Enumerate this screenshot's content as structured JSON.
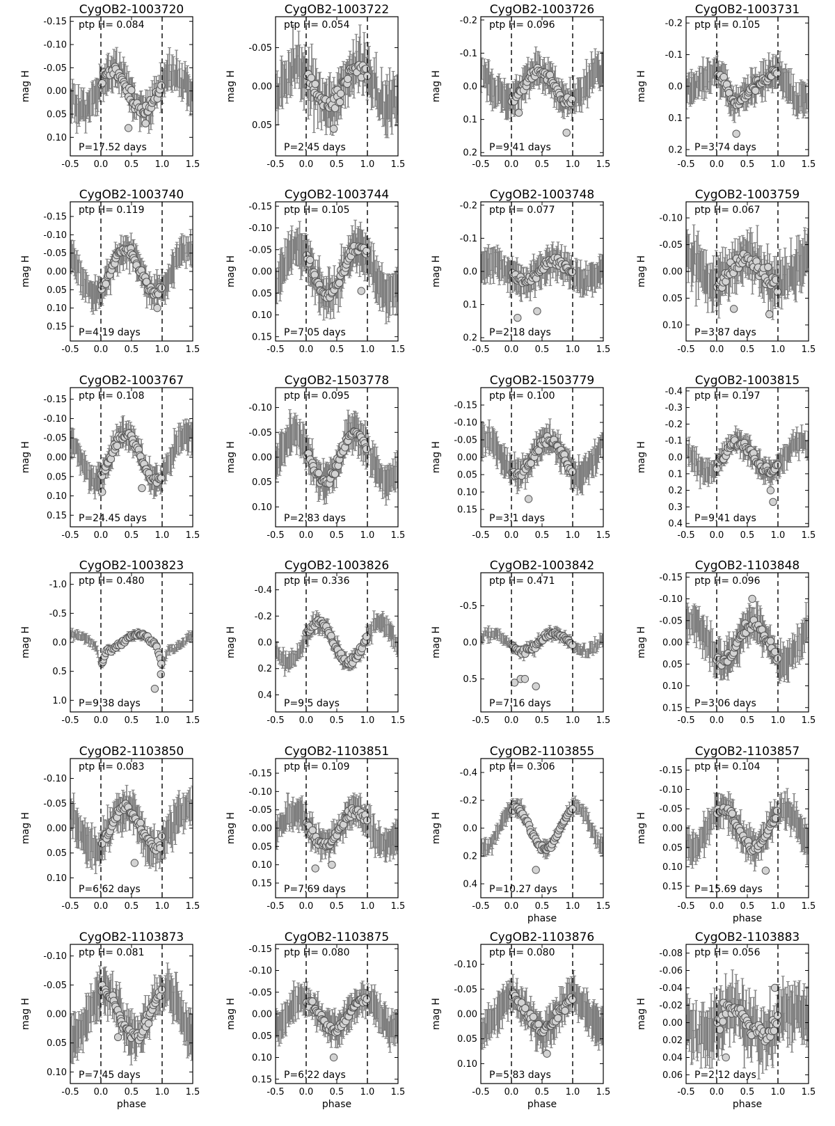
{
  "figure": {
    "xlabel": "phase",
    "ylabel": "mag H",
    "ptp_prefix": "ptp H=",
    "period_prefix": "P=",
    "period_suffix": " days",
    "xticks": [
      "-0.5",
      "0.0",
      "0.5",
      "1.0",
      "1.5"
    ],
    "colors": {
      "errorbar": "#7f7f7f",
      "marker_fill": "#d3d3d3",
      "marker_edge": "#555555",
      "axes": "#000000"
    }
  },
  "chart_data": [
    {
      "type": "scatter",
      "title": "CygOB2-1003720",
      "ptp": "0.084",
      "period": "17.52",
      "ylim": [
        0.14,
        -0.16
      ],
      "yticks": [
        "-0.15",
        "-0.10",
        "-0.05",
        "0.00",
        "0.05",
        "0.10"
      ],
      "ytick_values": [
        -0.15,
        -0.1,
        -0.05,
        0.0,
        0.05,
        0.1
      ],
      "mean": 0.0,
      "amp": 0.042,
      "shape": "sin",
      "phi0": 0.2,
      "scatter": 0.018,
      "err": 0.03,
      "outliers": [
        [
          0.45,
          0.08
        ],
        [
          0.73,
          0.07
        ]
      ]
    },
    {
      "type": "scatter",
      "title": "CygOB2-1003722",
      "ptp": "0.054",
      "period": "2.45",
      "ylim": [
        0.09,
        -0.09
      ],
      "yticks": [
        "-0.05",
        "0.00",
        "0.05"
      ],
      "ytick_values": [
        -0.05,
        0.0,
        0.05
      ],
      "mean": 0.0,
      "amp": 0.025,
      "shape": "sin",
      "phi0": 0.85,
      "scatter": 0.016,
      "err": 0.025,
      "outliers": [
        [
          0.45,
          0.055
        ]
      ]
    },
    {
      "type": "scatter",
      "title": "CygOB2-1003726",
      "ptp": "0.096",
      "period": "9.41",
      "ylim": [
        0.21,
        -0.21
      ],
      "yticks": [
        "-0.2",
        "-0.1",
        "0.0",
        "0.1",
        "0.2"
      ],
      "ytick_values": [
        -0.2,
        -0.1,
        0.0,
        0.1,
        0.2
      ],
      "mean": 0.0,
      "amp": 0.045,
      "shape": "sin",
      "phi0": 0.45,
      "scatter": 0.02,
      "err": 0.04,
      "outliers": [
        [
          0.12,
          0.08
        ],
        [
          0.9,
          0.14
        ]
      ]
    },
    {
      "type": "scatter",
      "title": "CygOB2-1003731",
      "ptp": "0.105",
      "period": "3.74",
      "ylim": [
        0.22,
        -0.22
      ],
      "yticks": [
        "-0.2",
        "-0.1",
        "0.0",
        "0.1",
        "0.2"
      ],
      "ytick_values": [
        -0.2,
        -0.1,
        0.0,
        0.1,
        0.2
      ],
      "mean": 0.0,
      "amp": 0.055,
      "shape": "saw",
      "phi0": 0.0,
      "phimin": 0.3,
      "scatter": 0.02,
      "err": 0.04,
      "outliers": [
        [
          0.32,
          0.15
        ]
      ]
    },
    {
      "type": "scatter",
      "title": "CygOB2-1003740",
      "ptp": "0.119",
      "period": "4.19",
      "ylim": [
        0.19,
        -0.19
      ],
      "yticks": [
        "-0.15",
        "-0.10",
        "-0.05",
        "0.00",
        "0.05",
        "0.10",
        "0.15"
      ],
      "ytick_values": [
        -0.15,
        -0.1,
        -0.05,
        0.0,
        0.05,
        0.1,
        0.15
      ],
      "mean": 0.0,
      "amp": 0.06,
      "shape": "sin",
      "phi0": 0.4,
      "scatter": 0.015,
      "err": 0.035,
      "outliers": [
        [
          0.92,
          0.1
        ]
      ]
    },
    {
      "type": "scatter",
      "title": "CygOB2-1003744",
      "ptp": "0.105",
      "period": "7.05",
      "ylim": [
        0.16,
        -0.16
      ],
      "yticks": [
        "-0.15",
        "-0.10",
        "-0.05",
        "0.00",
        "0.05",
        "0.10",
        "0.15"
      ],
      "ytick_values": [
        -0.15,
        -0.1,
        -0.05,
        0.0,
        0.05,
        0.1,
        0.15
      ],
      "mean": 0.0,
      "amp": 0.055,
      "shape": "sin",
      "phi0": 0.85,
      "scatter": 0.015,
      "err": 0.04,
      "outliers": [
        [
          0.9,
          0.045
        ]
      ]
    },
    {
      "type": "scatter",
      "title": "CygOB2-1003748",
      "ptp": "0.077",
      "period": "2.18",
      "ylim": [
        0.21,
        -0.21
      ],
      "yticks": [
        "-0.2",
        "-0.1",
        "0.0",
        "0.1",
        "0.2"
      ],
      "ytick_values": [
        -0.2,
        -0.1,
        0.0,
        0.1,
        0.2
      ],
      "mean": 0.0,
      "amp": 0.03,
      "shape": "sin",
      "phi0": 0.7,
      "scatter": 0.015,
      "err": 0.04,
      "outliers": [
        [
          0.1,
          0.14
        ],
        [
          0.42,
          0.12
        ]
      ]
    },
    {
      "type": "scatter",
      "title": "CygOB2-1003759",
      "ptp": "0.067",
      "period": "3.87",
      "ylim": [
        0.13,
        -0.13
      ],
      "yticks": [
        "-0.10",
        "-0.05",
        "0.00",
        "0.05",
        "0.10"
      ],
      "ytick_values": [
        -0.1,
        -0.05,
        0.0,
        0.05,
        0.1
      ],
      "mean": 0.0,
      "amp": 0.025,
      "shape": "sin",
      "phi0": 0.5,
      "scatter": 0.02,
      "err": 0.035,
      "outliers": [
        [
          0.28,
          0.07
        ],
        [
          0.86,
          0.08
        ]
      ]
    },
    {
      "type": "scatter",
      "title": "CygOB2-1003767",
      "ptp": "0.108",
      "period": "24.45",
      "ylim": [
        0.18,
        -0.18
      ],
      "yticks": [
        "-0.15",
        "-0.10",
        "-0.05",
        "0.00",
        "0.05",
        "0.10",
        "0.15"
      ],
      "ytick_values": [
        -0.15,
        -0.1,
        -0.05,
        0.0,
        0.05,
        0.1,
        0.15
      ],
      "mean": 0.0,
      "amp": 0.06,
      "shape": "sin",
      "phi0": 0.4,
      "scatter": 0.012,
      "err": 0.03,
      "outliers": [
        [
          0.02,
          0.09
        ],
        [
          0.67,
          0.08
        ]
      ]
    },
    {
      "type": "scatter",
      "title": "CygOB2-1503778",
      "ptp": "0.095",
      "period": "2.83",
      "ylim": [
        0.14,
        -0.14
      ],
      "yticks": [
        "-0.10",
        "-0.05",
        "0.00",
        "0.05",
        "0.10"
      ],
      "ytick_values": [
        -0.1,
        -0.05,
        0.0,
        0.05,
        0.1
      ],
      "mean": 0.0,
      "amp": 0.05,
      "shape": "sin",
      "phi0": 0.8,
      "scatter": 0.012,
      "err": 0.03,
      "outliers": []
    },
    {
      "type": "scatter",
      "title": "CygOB2-1503779",
      "ptp": "0.100",
      "period": "3.1",
      "ylim": [
        0.2,
        -0.2
      ],
      "yticks": [
        "-0.15",
        "-0.10",
        "-0.05",
        "0.00",
        "0.05",
        "0.10",
        "0.15"
      ],
      "ytick_values": [
        -0.15,
        -0.1,
        -0.05,
        0.0,
        0.05,
        0.1,
        0.15
      ],
      "mean": 0.0,
      "amp": 0.05,
      "shape": "sin",
      "phi0": 0.6,
      "scatter": 0.015,
      "err": 0.035,
      "outliers": [
        [
          0.28,
          0.12
        ]
      ]
    },
    {
      "type": "scatter",
      "title": "CygOB2-1003815",
      "ptp": "0.197",
      "period": "9.41",
      "ylim": [
        0.42,
        -0.42
      ],
      "yticks": [
        "-0.4",
        "-0.3",
        "-0.2",
        "-0.1",
        "0.0",
        "0.1",
        "0.2",
        "0.3",
        "0.4"
      ],
      "ytick_values": [
        -0.4,
        -0.3,
        -0.2,
        -0.1,
        0.0,
        0.1,
        0.2,
        0.3,
        0.4
      ],
      "mean": 0.0,
      "amp": 0.09,
      "shape": "sin",
      "phi0": 0.35,
      "scatter": 0.03,
      "err": 0.06,
      "outliers": [
        [
          0.92,
          0.27
        ],
        [
          0.88,
          0.2
        ]
      ]
    },
    {
      "type": "scatter",
      "title": "CygOB2-1003823",
      "ptp": "0.480",
      "period": "9.38",
      "ylim": [
        1.2,
        -1.2
      ],
      "yticks": [
        "-1.0",
        "-0.5",
        "0.0",
        "0.5",
        "1.0"
      ],
      "ytick_values": [
        -1.0,
        -0.5,
        0.0,
        0.5,
        1.0
      ],
      "mean": 0.0,
      "amp": 0.22,
      "shape": "dip",
      "phi0": 0.6,
      "scatter": 0.04,
      "err": 0.06,
      "outliers": [
        [
          0.88,
          0.8
        ],
        [
          0.98,
          0.55
        ]
      ]
    },
    {
      "type": "scatter",
      "title": "CygOB2-1003826",
      "ptp": "0.336",
      "period": "9.5",
      "ylim": [
        0.53,
        -0.53
      ],
      "yticks": [
        "-0.4",
        "-0.2",
        "0.0",
        "0.2",
        "0.4"
      ],
      "ytick_values": [
        -0.4,
        -0.2,
        0.0,
        0.2,
        0.4
      ],
      "mean": 0.0,
      "amp": 0.15,
      "shape": "sin",
      "phi0": 0.2,
      "scatter": 0.03,
      "err": 0.06,
      "outliers": []
    },
    {
      "type": "scatter",
      "title": "CygOB2-1003842",
      "ptp": "0.471",
      "period": "7.16",
      "ylim": [
        0.95,
        -0.95
      ],
      "yticks": [
        "-0.5",
        "0.0",
        "0.5"
      ],
      "ytick_values": [
        -0.5,
        0.0,
        0.5
      ],
      "mean": 0.0,
      "amp": 0.12,
      "shape": "sin",
      "phi0": 0.7,
      "scatter": 0.05,
      "err": 0.06,
      "outliers": [
        [
          0.05,
          0.55
        ],
        [
          0.15,
          0.5
        ],
        [
          0.22,
          0.5
        ],
        [
          0.4,
          0.6
        ]
      ]
    },
    {
      "type": "scatter",
      "title": "CygOB2-1103848",
      "ptp": "0.096",
      "period": "3.06",
      "ylim": [
        0.16,
        -0.16
      ],
      "yticks": [
        "-0.15",
        "-0.10",
        "-0.05",
        "0.00",
        "0.05",
        "0.10",
        "0.15"
      ],
      "ytick_values": [
        -0.15,
        -0.1,
        -0.05,
        0.0,
        0.05,
        0.1,
        0.15
      ],
      "mean": 0.0,
      "amp": 0.045,
      "shape": "sin",
      "phi0": 0.6,
      "scatter": 0.015,
      "err": 0.035,
      "outliers": [
        [
          0.58,
          -0.1
        ]
      ]
    },
    {
      "type": "scatter",
      "title": "CygOB2-1103850",
      "ptp": "0.083",
      "period": "6.62",
      "ylim": [
        0.14,
        -0.14
      ],
      "yticks": [
        "-0.10",
        "-0.05",
        "0.00",
        "0.05",
        "0.10"
      ],
      "ytick_values": [
        -0.1,
        -0.05,
        0.0,
        0.05,
        0.1
      ],
      "mean": 0.0,
      "amp": 0.04,
      "shape": "sin",
      "phi0": 0.4,
      "scatter": 0.015,
      "err": 0.03,
      "outliers": [
        [
          0.55,
          0.07
        ]
      ]
    },
    {
      "type": "scatter",
      "title": "CygOB2-1103851",
      "ptp": "0.109",
      "period": "7.69",
      "ylim": [
        0.19,
        -0.19
      ],
      "yticks": [
        "-0.15",
        "-0.10",
        "-0.05",
        "0.00",
        "0.05",
        "0.10",
        "0.15"
      ],
      "ytick_values": [
        -0.15,
        -0.1,
        -0.05,
        0.0,
        0.05,
        0.1,
        0.15
      ],
      "mean": 0.0,
      "amp": 0.045,
      "shape": "sin",
      "phi0": 0.8,
      "scatter": 0.015,
      "err": 0.035,
      "outliers": [
        [
          0.15,
          0.11
        ],
        [
          0.42,
          0.1
        ]
      ]
    },
    {
      "type": "scatter",
      "title": "CygOB2-1103855",
      "ptp": "0.306",
      "period": "10.27",
      "ylim": [
        0.5,
        -0.5
      ],
      "yticks": [
        "-0.4",
        "-0.2",
        "0.0",
        "0.2",
        "0.4"
      ],
      "ytick_values": [
        -0.4,
        -0.2,
        0.0,
        0.2,
        0.4
      ],
      "mean": 0.0,
      "amp": 0.15,
      "shape": "sin",
      "phi0": 0.05,
      "scatter": 0.02,
      "err": 0.05,
      "outliers": [
        [
          0.4,
          0.3
        ]
      ]
    },
    {
      "type": "scatter",
      "title": "CygOB2-1103857",
      "ptp": "0.104",
      "period": "15.69",
      "ylim": [
        0.18,
        -0.18
      ],
      "yticks": [
        "-0.15",
        "-0.10",
        "-0.05",
        "0.00",
        "0.05",
        "0.10",
        "0.15"
      ],
      "ytick_values": [
        -0.15,
        -0.1,
        -0.05,
        0.0,
        0.05,
        0.1,
        0.15
      ],
      "mean": 0.0,
      "amp": 0.05,
      "shape": "sin",
      "phi0": 0.1,
      "scatter": 0.015,
      "err": 0.035,
      "outliers": [
        [
          0.8,
          0.11
        ]
      ]
    },
    {
      "type": "scatter",
      "title": "CygOB2-1103873",
      "ptp": "0.081",
      "period": "7.45",
      "ylim": [
        0.12,
        -0.12
      ],
      "yticks": [
        "-0.10",
        "-0.05",
        "0.00",
        "0.05",
        "0.10"
      ],
      "ytick_values": [
        -0.1,
        -0.05,
        0.0,
        0.05,
        0.1
      ],
      "mean": 0.0,
      "amp": 0.04,
      "shape": "sin",
      "phi0": 0.05,
      "scatter": 0.012,
      "err": 0.03,
      "outliers": [
        [
          0.28,
          0.04
        ]
      ]
    },
    {
      "type": "scatter",
      "title": "CygOB2-1103875",
      "ptp": "0.080",
      "period": "6.22",
      "ylim": [
        0.16,
        -0.16
      ],
      "yticks": [
        "-0.15",
        "-0.10",
        "-0.05",
        "0.00",
        "0.05",
        "0.10",
        "0.15"
      ],
      "ytick_values": [
        -0.15,
        -0.1,
        -0.05,
        0.0,
        0.05,
        0.1,
        0.15
      ],
      "mean": 0.0,
      "amp": 0.035,
      "shape": "sin",
      "phi0": 0.95,
      "scatter": 0.012,
      "err": 0.03,
      "outliers": [
        [
          0.45,
          0.1
        ]
      ]
    },
    {
      "type": "scatter",
      "title": "CygOB2-1103876",
      "ptp": "0.080",
      "period": "5.83",
      "ylim": [
        0.14,
        -0.14
      ],
      "yticks": [
        "-0.10",
        "-0.05",
        "0.00",
        "0.05",
        "0.10"
      ],
      "ytick_values": [
        -0.1,
        -0.05,
        0.0,
        0.05,
        0.1
      ],
      "mean": 0.0,
      "amp": 0.04,
      "shape": "saw",
      "phi0": 0.0,
      "phimin": 0.52,
      "scatter": 0.012,
      "err": 0.03,
      "outliers": [
        [
          0.58,
          0.08
        ]
      ]
    },
    {
      "type": "scatter",
      "title": "CygOB2-1103883",
      "ptp": "0.056",
      "period": "2.12",
      "ylim": [
        0.07,
        -0.09
      ],
      "yticks": [
        "-0.08",
        "-0.06",
        "-0.04",
        "-0.02",
        "0.00",
        "0.02",
        "0.04",
        "0.06"
      ],
      "ytick_values": [
        -0.08,
        -0.06,
        -0.04,
        -0.02,
        0.0,
        0.02,
        0.04,
        0.06
      ],
      "mean": 0.0,
      "amp": 0.015,
      "shape": "sin",
      "phi0": 0.25,
      "scatter": 0.015,
      "err": 0.025,
      "outliers": [
        [
          0.95,
          -0.04
        ],
        [
          0.15,
          0.04
        ]
      ]
    }
  ]
}
